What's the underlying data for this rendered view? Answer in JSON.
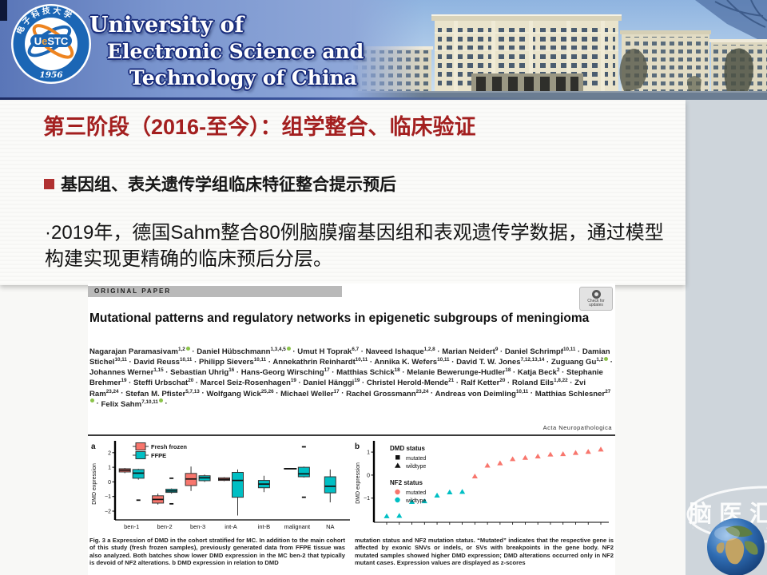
{
  "header": {
    "logo": {
      "ring_text": "电 子 科 技 大 学",
      "acr1": "U",
      "acr2": "e",
      "acr3": "STC",
      "year": "1956"
    },
    "university": [
      "University of",
      "Electronic Science and",
      "Technology of China"
    ]
  },
  "slide": {
    "title": "第三阶段（2016-至今）：组学整合、临床验证",
    "bullet": "基因组、表关遗传学组临床特征整合提示预后",
    "body": "·2019年，德国Sahm整合80例脑膜瘤基因组和表观遗传学数据，通过模型构建实现更精确的临床预后分层。"
  },
  "paper": {
    "kicker": "ORIGINAL PAPER",
    "check_badge": "Check for updates",
    "title": "Mutational patterns and regulatory networks in epigenetic subgroups of meningioma",
    "journal": "Acta Neuropathologica",
    "authors": [
      {
        "n": "Nagarajan Paramasivam",
        "s": "1,2",
        "o": true
      },
      {
        "n": "Daniel Hübschmann",
        "s": "1,3,4,5",
        "o": true
      },
      {
        "n": "Umut H Toprak",
        "s": "6,7"
      },
      {
        "n": "Naveed Ishaque",
        "s": "1,2,8"
      },
      {
        "n": "Marian Neidert",
        "s": "9"
      },
      {
        "n": "Daniel Schrimpf",
        "s": "10,11"
      },
      {
        "n": "Damian Stichel",
        "s": "10,11"
      },
      {
        "n": "David Reuss",
        "s": "10,11"
      },
      {
        "n": "Philipp Sievers",
        "s": "10,11"
      },
      {
        "n": "Annekathrin Reinhardt",
        "s": "10,11"
      },
      {
        "n": "Annika K. Wefers",
        "s": "10,11"
      },
      {
        "n": "David T. W. Jones",
        "s": "7,12,13,14"
      },
      {
        "n": "Zuguang Gu",
        "s": "1,2",
        "o": true
      },
      {
        "n": "Johannes Werner",
        "s": "1,15"
      },
      {
        "n": "Sebastian Uhrig",
        "s": "16"
      },
      {
        "n": "Hans-Georg Wirsching",
        "s": "17"
      },
      {
        "n": "Matthias Schick",
        "s": "18"
      },
      {
        "n": "Melanie Bewerunge-Hudler",
        "s": "18"
      },
      {
        "n": "Katja Beck",
        "s": "2"
      },
      {
        "n": "Stephanie Brehmer",
        "s": "19"
      },
      {
        "n": "Steffi Urbschat",
        "s": "20"
      },
      {
        "n": "Marcel Seiz-Rosenhagen",
        "s": "19"
      },
      {
        "n": "Daniel Hänggi",
        "s": "19"
      },
      {
        "n": "Christel Herold-Mende",
        "s": "21"
      },
      {
        "n": "Ralf Ketter",
        "s": "20"
      },
      {
        "n": "Roland Eils",
        "s": "1,8,22"
      },
      {
        "n": "Zvi Ram",
        "s": "23,24"
      },
      {
        "n": "Stefan M. Pfister",
        "s": "5,7,13"
      },
      {
        "n": "Wolfgang Wick",
        "s": "25,26"
      },
      {
        "n": "Michael Weller",
        "s": "17"
      },
      {
        "n": "Rachel Grossmann",
        "s": "23,24"
      },
      {
        "n": "Andreas von Deimling",
        "s": "10,11"
      },
      {
        "n": "Matthias Schlesner",
        "s": "27",
        "o": true
      },
      {
        "n": "Felix Sahm",
        "s": "7,10,11",
        "o": true
      }
    ],
    "caption_left": "Fig. 3  a Expression of DMD in the cohort stratified for MC. In addition to the main cohort of this study (fresh frozen samples), previously generated data from FFPE tissue was also analyzed. Both batches show lower DMD expression in the MC ben-2 that typically is devoid of NF2 alterations. b DMD expression in relation to DMD",
    "caption_right": "mutation status and NF2 mutation status. “Mutated” indicates that the respective gene is affected by exonic SNVs or indels, or SVs with breakpoints in the gene body. NF2 mutated samples showed higher DMD expression; DMD alterations occurred only in NF2 mutant cases. Expression values are displayed as z-scores"
  },
  "watermark": {
    "text": "脑医汇",
    "sub": "· · · · · · · · · ·"
  },
  "chart_data": [
    {
      "type": "box",
      "panel": "a",
      "ylabel": "DMD expression",
      "ylim": [
        -2.6,
        2.7
      ],
      "yticks": [
        2,
        1,
        0,
        -1,
        -2
      ],
      "categories": [
        "ben-1",
        "ben-2",
        "ben-3",
        "int-A",
        "int-B",
        "malignant",
        "NA"
      ],
      "legend": [
        {
          "label": "Fresh frozen",
          "color": "#f8766d"
        },
        {
          "label": "FFPE",
          "color": "#00bfc4"
        }
      ],
      "boxes": [
        {
          "cat": 0,
          "series": 0,
          "lo": 0.6,
          "q1": 0.68,
          "med": 0.8,
          "q3": 0.9,
          "hi": 0.95
        },
        {
          "cat": 0,
          "series": 1,
          "lo": 0.15,
          "q1": 0.25,
          "med": 0.6,
          "q3": 0.85,
          "hi": 0.9,
          "outliers": [
            -1.25
          ]
        },
        {
          "cat": 1,
          "series": 0,
          "lo": -1.55,
          "q1": -1.45,
          "med": -1.2,
          "q3": -0.95,
          "hi": -0.8
        },
        {
          "cat": 1,
          "series": 1,
          "lo": -0.8,
          "q1": -0.72,
          "med": -0.62,
          "q3": -0.5,
          "hi": -0.45,
          "outliers": [
            0.25,
            -1.5
          ]
        },
        {
          "cat": 2,
          "series": 0,
          "lo": -0.62,
          "q1": -0.25,
          "med": 0.2,
          "q3": 0.58,
          "hi": 1.05
        },
        {
          "cat": 2,
          "series": 1,
          "lo": 0.0,
          "q1": 0.08,
          "med": 0.28,
          "q3": 0.42,
          "hi": 0.5
        },
        {
          "cat": 3,
          "series": 0,
          "lo": 0.05,
          "q1": 0.1,
          "med": 0.18,
          "q3": 0.28,
          "hi": 0.32
        },
        {
          "cat": 3,
          "series": 1,
          "lo": -2.3,
          "q1": -1.05,
          "med": 0.1,
          "q3": 0.65,
          "hi": 0.85
        },
        {
          "cat": 4,
          "series": 1,
          "center": true,
          "lo": -0.7,
          "q1": -0.4,
          "med": -0.15,
          "q3": 0.1,
          "hi": 0.42
        },
        {
          "cat": 5,
          "series": 0,
          "lo": 0.9,
          "q1": 0.9,
          "med": 0.9,
          "q3": 0.9,
          "hi": 0.9
        },
        {
          "cat": 5,
          "series": 1,
          "lo": 0.3,
          "q1": 0.35,
          "med": 0.55,
          "q3": 1.0,
          "hi": 1.05,
          "outliers": [
            2.4,
            -1.05
          ]
        },
        {
          "cat": 6,
          "series": 1,
          "center": true,
          "lo": -1.4,
          "q1": -0.75,
          "med": -0.3,
          "q3": 0.35,
          "hi": 0.85
        }
      ]
    },
    {
      "type": "scatter",
      "panel": "b",
      "ylabel": "DMD expression",
      "ylim": [
        -2.05,
        1.35
      ],
      "yticks": [
        1,
        0,
        -1
      ],
      "legend_dmd": {
        "title": "DMD status",
        "items": [
          {
            "label": "mutated",
            "shape": "square"
          },
          {
            "label": "wildtype",
            "shape": "triangle"
          }
        ]
      },
      "legend_nf2": {
        "title": "NF2 status",
        "items": [
          {
            "label": "mutated",
            "color": "#f8766d"
          },
          {
            "label": "wildtype",
            "color": "#00bfc4"
          }
        ]
      },
      "points": [
        {
          "y": -1.78,
          "color": "#00bfc4",
          "shape": "triangle"
        },
        {
          "y": -1.76,
          "color": "#00bfc4",
          "shape": "triangle"
        },
        {
          "y": -1.16,
          "color": "#00bfc4",
          "shape": "triangle"
        },
        {
          "y": -1.13,
          "color": "#00bfc4",
          "shape": "triangle"
        },
        {
          "y": -0.88,
          "color": "#00bfc4",
          "shape": "triangle"
        },
        {
          "y": -0.74,
          "color": "#00bfc4",
          "shape": "triangle"
        },
        {
          "y": -0.72,
          "color": "#00bfc4",
          "shape": "triangle"
        },
        {
          "y": -0.05,
          "color": "#f8766d",
          "shape": "triangle"
        },
        {
          "y": 0.42,
          "color": "#f8766d",
          "shape": "triangle"
        },
        {
          "y": 0.52,
          "color": "#f8766d",
          "shape": "triangle"
        },
        {
          "y": 0.7,
          "color": "#f8766d",
          "shape": "triangle"
        },
        {
          "y": 0.76,
          "color": "#f8766d",
          "shape": "triangle"
        },
        {
          "y": 0.82,
          "color": "#f8766d",
          "shape": "triangle"
        },
        {
          "y": 0.9,
          "color": "#f8766d",
          "shape": "triangle"
        },
        {
          "y": 0.92,
          "color": "#f8766d",
          "shape": "triangle"
        },
        {
          "y": 0.97,
          "color": "#f8766d",
          "shape": "triangle"
        },
        {
          "y": 1.02,
          "color": "#f8766d",
          "shape": "triangle"
        },
        {
          "y": 1.12,
          "color": "#f8766d",
          "shape": "triangle"
        }
      ]
    }
  ]
}
